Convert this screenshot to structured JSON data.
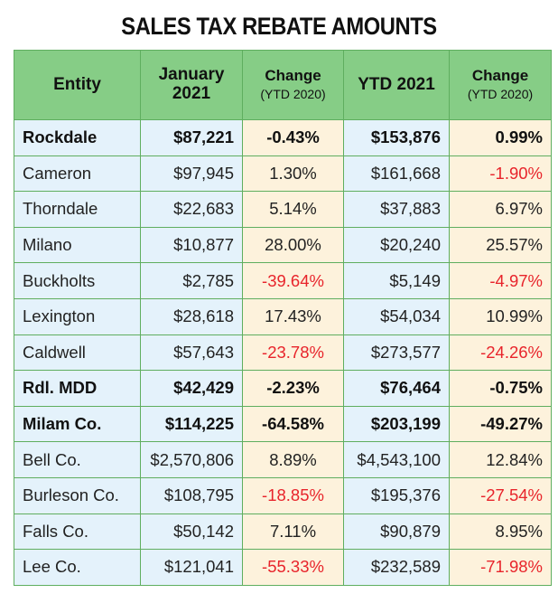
{
  "header": {
    "title": "SALES TAX REBATE AMOUNTS"
  },
  "table": {
    "columns": [
      {
        "title": "Entity"
      },
      {
        "title": "January 2021"
      },
      {
        "title": "Change",
        "subtitle": "(YTD 2020)"
      },
      {
        "title": "YTD 2021"
      },
      {
        "title": "Change",
        "subtitle": "(YTD 2020)"
      }
    ],
    "rows": [
      {
        "bold": true,
        "cells": [
          "Rockdale",
          "$87,221",
          "-0.43%",
          "$153,876",
          "0.99%"
        ]
      },
      {
        "bold": false,
        "cells": [
          "Cameron",
          "$97,945",
          "1.30%",
          "$161,668",
          "-1.90%"
        ]
      },
      {
        "bold": false,
        "cells": [
          "Thorndale",
          "$22,683",
          "5.14%",
          "$37,883",
          "6.97%"
        ]
      },
      {
        "bold": false,
        "cells": [
          "Milano",
          "$10,877",
          "28.00%",
          "$20,240",
          "25.57%"
        ]
      },
      {
        "bold": false,
        "cells": [
          "Buckholts",
          "$2,785",
          "-39.64%",
          "$5,149",
          "-4.97%"
        ]
      },
      {
        "bold": false,
        "cells": [
          "Lexington",
          "$28,618",
          "17.43%",
          "$54,034",
          "10.99%"
        ]
      },
      {
        "bold": false,
        "cells": [
          "Caldwell",
          "$57,643",
          "-23.78%",
          "$273,577",
          "-24.26%"
        ]
      },
      {
        "bold": true,
        "cells": [
          "Rdl. MDD",
          "$42,429",
          "-2.23%",
          "$76,464",
          "-0.75%"
        ]
      },
      {
        "bold": true,
        "cells": [
          "Milam Co.",
          "$114,225",
          "-64.58%",
          "$203,199",
          "-49.27%"
        ]
      },
      {
        "bold": false,
        "cells": [
          "Bell Co.",
          "$2,570,806",
          "8.89%",
          "$4,543,100",
          "12.84%"
        ]
      },
      {
        "bold": false,
        "cells": [
          "Burleson Co.",
          "$108,795",
          "-18.85%",
          "$195,376",
          "-27.54%"
        ]
      },
      {
        "bold": false,
        "cells": [
          "Falls Co.",
          "$50,142",
          "7.11%",
          "$90,879",
          "8.95%"
        ]
      },
      {
        "bold": false,
        "cells": [
          "Lee Co.",
          "$121,041",
          "-55.33%",
          "$232,589",
          "-71.98%"
        ]
      }
    ]
  }
}
